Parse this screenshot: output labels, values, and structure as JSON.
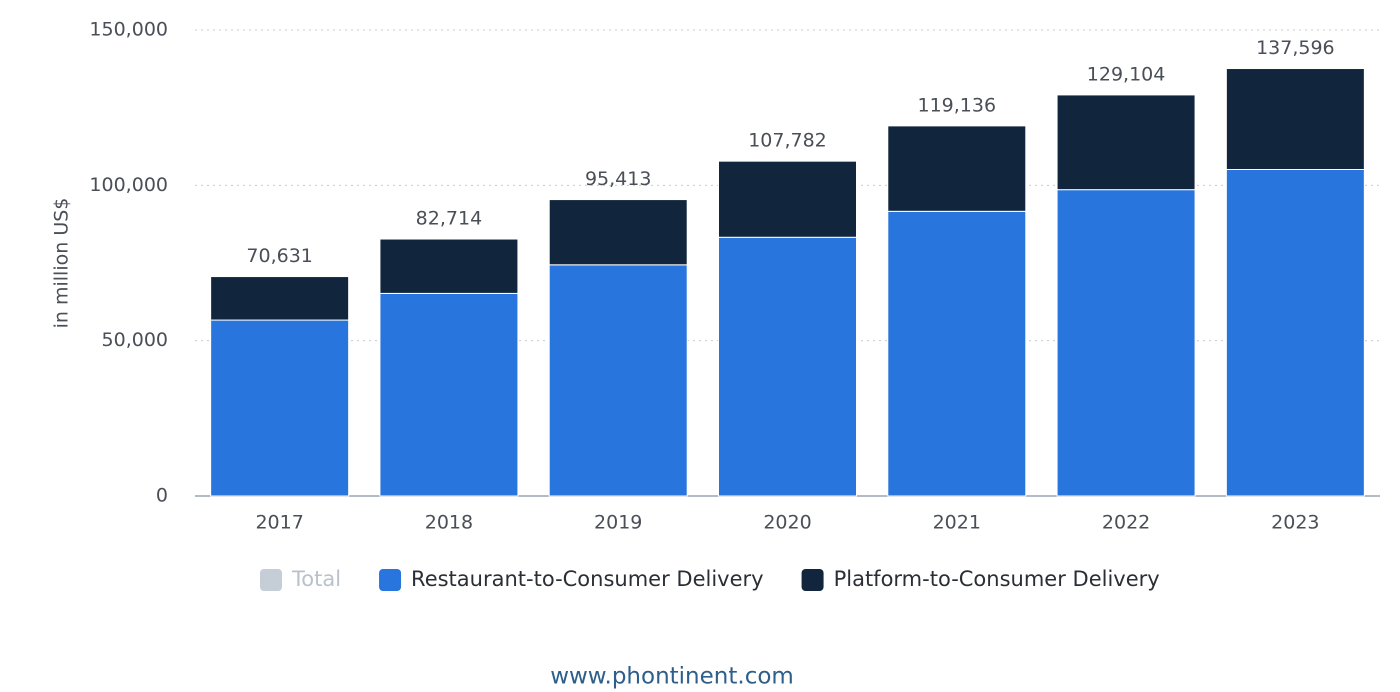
{
  "chart_data": {
    "type": "stacked-bar",
    "y_axis_label": "in million US$",
    "categories": [
      "2017",
      "2018",
      "2019",
      "2020",
      "2021",
      "2022",
      "2023"
    ],
    "series": [
      {
        "name": "Total",
        "color": "#c5cdd6",
        "hidden": true,
        "values": [
          70631,
          82714,
          95413,
          107782,
          119136,
          129104,
          137596
        ],
        "value_labels": [
          "70,631",
          "82,714",
          "95,413",
          "107,782",
          "119,136",
          "129,104",
          "137,596"
        ]
      },
      {
        "name": "Restaurant-to-Consumer Delivery",
        "color": "#2876dd",
        "values": [
          56631,
          65214,
          74413,
          83282,
          91636,
          98604,
          105096
        ]
      },
      {
        "name": "Platform-to-Consumer Delivery",
        "color": "#11253d",
        "values": [
          14000,
          17500,
          21000,
          24500,
          27500,
          30500,
          32500
        ]
      }
    ],
    "ylim": [
      0,
      150000
    ],
    "yticks": [
      {
        "value": 0,
        "label": "0"
      },
      {
        "value": 50000,
        "label": "50,000"
      },
      {
        "value": 100000,
        "label": "100,000"
      },
      {
        "value": 150000,
        "label": "150,000"
      }
    ],
    "grid": true,
    "footer": "www.phontinent.com"
  }
}
